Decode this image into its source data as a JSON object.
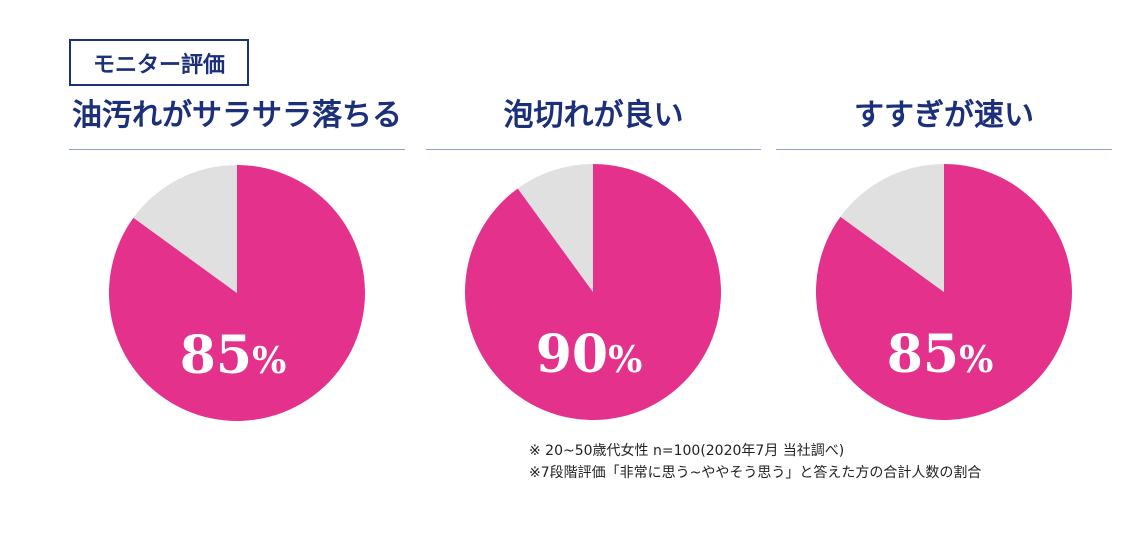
{
  "header": {
    "badge": "モニター評価"
  },
  "chart_data": [
    {
      "type": "pie",
      "title": "油汚れがサラサラ落ちる",
      "label": "85%",
      "slices": [
        {
          "value": 85,
          "color": "#e4318c"
        },
        {
          "value": 15,
          "color": "#e0e0e0"
        }
      ]
    },
    {
      "type": "pie",
      "title": "泡切れが良い",
      "label": "90%",
      "slices": [
        {
          "value": 90,
          "color": "#e4318c"
        },
        {
          "value": 10,
          "color": "#e0e0e0"
        }
      ]
    },
    {
      "type": "pie",
      "title": "すすぎが速い",
      "label": "85%",
      "slices": [
        {
          "value": 85,
          "color": "#e4318c"
        },
        {
          "value": 15,
          "color": "#e0e0e0"
        }
      ]
    }
  ],
  "notes": {
    "line1": "※ 20~50歳代女性 n=100(2020年7月 当社調べ)",
    "line2": "※7段階評価「非常に思う~ややそう思う」と答えた方の合計人数の割合"
  }
}
